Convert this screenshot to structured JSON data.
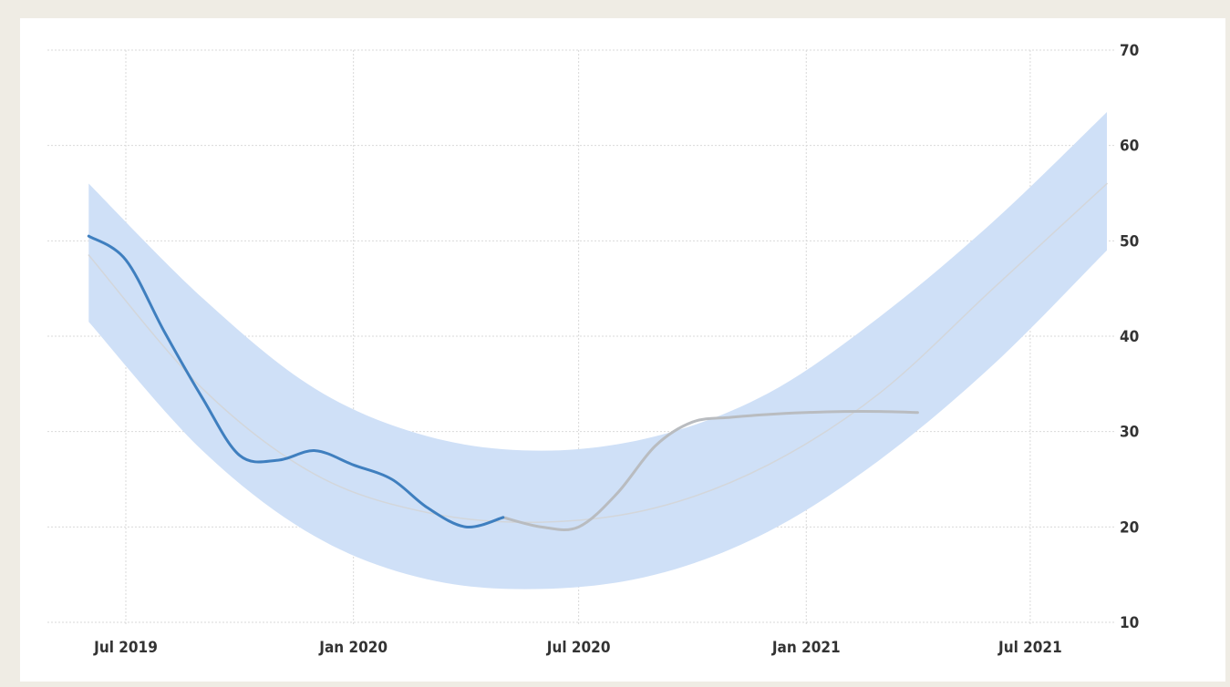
{
  "chart_data": {
    "type": "line",
    "title": "",
    "xlabel": "",
    "ylabel": "",
    "x_ticks": [
      "Jul 2019",
      "Jan 2020",
      "Jul 2020",
      "Jan 2021",
      "Jul 2021"
    ],
    "y_ticks": [
      10,
      20,
      30,
      40,
      50,
      60,
      70
    ],
    "ylim": [
      10,
      70
    ],
    "grid": true,
    "legend": "none",
    "colors": {
      "actual": "#3f7fbf",
      "forecast": "#b9bcc0",
      "trend": "#d3d6da",
      "band": "#cfe0f7",
      "grid": "#d9d9d9",
      "axis_text": "#333333"
    },
    "series": [
      {
        "role": "actual",
        "x": [
          "2019-06-01",
          "2019-07-01",
          "2019-08-01",
          "2019-09-01",
          "2019-10-01",
          "2019-11-01",
          "2019-12-01",
          "2020-01-01",
          "2020-02-01",
          "2020-03-01",
          "2020-04-01",
          "2020-05-01"
        ],
        "values": [
          50.5,
          48.0,
          40.5,
          33.5,
          27.5,
          27.0,
          28.0,
          26.5,
          25.0,
          22.0,
          20.0,
          21.0
        ]
      },
      {
        "role": "forecast",
        "x": [
          "2020-05-01",
          "2020-06-01",
          "2020-07-01",
          "2020-08-01",
          "2020-09-01",
          "2020-10-01",
          "2020-11-01",
          "2020-12-01",
          "2021-01-01",
          "2021-02-01",
          "2021-03-01",
          "2021-04-01"
        ],
        "values": [
          21.0,
          20.0,
          20.0,
          23.5,
          28.5,
          31.0,
          31.5,
          31.8,
          32.0,
          32.1,
          32.1,
          32.0
        ]
      },
      {
        "role": "trend",
        "x": [
          "2019-06-01",
          "2019-09-01",
          "2019-12-01",
          "2020-03-01",
          "2020-06-01",
          "2020-09-01",
          "2020-12-01",
          "2021-03-01",
          "2021-06-01",
          "2021-09-01"
        ],
        "values": [
          48.5,
          34.5,
          25.5,
          21.5,
          20.5,
          22.0,
          26.5,
          34.0,
          45.0,
          56.0
        ]
      }
    ],
    "band": {
      "x": [
        "2019-06-01",
        "2019-09-01",
        "2019-12-01",
        "2020-03-01",
        "2020-06-01",
        "2020-09-01",
        "2020-12-01",
        "2021-03-01",
        "2021-06-01",
        "2021-09-01"
      ],
      "upper": [
        56.0,
        44.0,
        34.5,
        29.5,
        28.0,
        29.5,
        34.0,
        42.0,
        52.0,
        63.5
      ],
      "lower": [
        41.5,
        28.0,
        19.0,
        14.5,
        13.5,
        15.0,
        19.5,
        27.0,
        37.0,
        49.0
      ]
    }
  }
}
